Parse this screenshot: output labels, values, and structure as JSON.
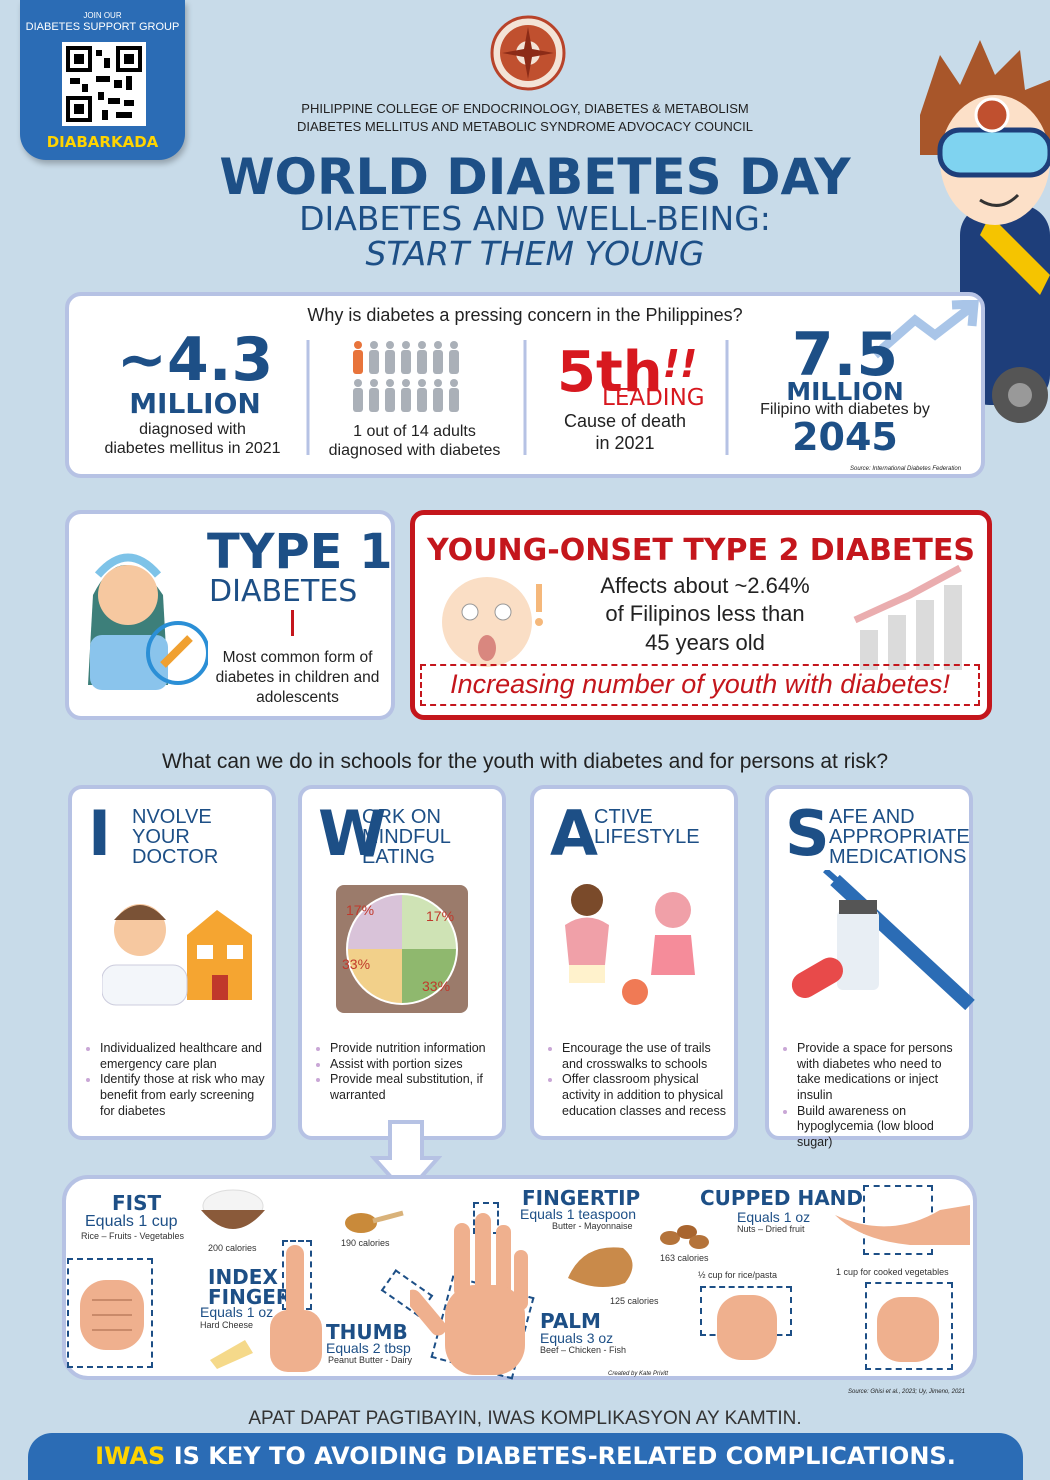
{
  "qr": {
    "top": "JOIN OUR",
    "sub": "DIABETES SUPPORT GROUP",
    "name": "DIABARKADA"
  },
  "header": {
    "org1": "PHILIPPINE COLLEGE OF ENDOCRINOLOGY, DIABETES & METABOLISM",
    "org2": "DIABETES MELLITUS AND METABOLIC SYNDROME ADVOCACY COUNCIL",
    "title": "WORLD DIABETES DAY",
    "subtitle1": "DIABETES AND WELL-BEING:",
    "subtitle2": "START THEM YOUNG"
  },
  "stats": {
    "question": "Why is diabetes a pressing concern in the Philippines?",
    "items": [
      {
        "big": "~4.3",
        "unit": "MILLION",
        "text1": "diagnosed with",
        "text2": "diabetes mellitus in 2021"
      },
      {
        "text1": "1 out of 14 adults",
        "text2": "diagnosed with diabetes"
      },
      {
        "big": "5th",
        "exclaim": "!!",
        "unit": "LEADING",
        "text1": "Cause of death",
        "text2": "in 2021"
      },
      {
        "big": "7.5",
        "unit": "MILLION",
        "text1": "Filipino with diabetes by",
        "text2": "2045"
      }
    ],
    "source": "Source: International Diabetes Federation"
  },
  "type1": {
    "title1": "TYPE 1",
    "title2": "DIABETES",
    "text": [
      "Most common form of",
      "diabetes in children and",
      "adolescents"
    ]
  },
  "type2": {
    "title": "YOUNG-ONSET TYPE 2 DIABETES",
    "text": [
      "Affects about ~2.64%",
      "of Filipinos less than",
      "45 years old"
    ],
    "banner": "Increasing number of youth with diabetes!"
  },
  "schools": {
    "question": "What can we do in schools for the youth with diabetes and for persons at risk?",
    "cards": [
      {
        "letter": "I",
        "title": [
          "NVOLVE YOUR",
          "DOCTOR"
        ],
        "bullets": [
          "Individualized healthcare and emergency care plan",
          "Identify those at risk who may benefit from early screening for diabetes"
        ]
      },
      {
        "letter": "W",
        "title": [
          "ORK ON",
          "MINDFUL",
          "EATING"
        ],
        "bullets": [
          "Provide nutrition information",
          "Assist with portion sizes",
          "Provide meal substitution, if warranted"
        ]
      },
      {
        "letter": "A",
        "title": [
          "CTIVE",
          "LIFESTYLE"
        ],
        "bullets": [
          "Encourage the use of trails and crosswalks to schools",
          "Offer classroom physical activity in addition to physical education classes and recess"
        ]
      },
      {
        "letter": "S",
        "title": [
          "AFE AND",
          "APPROPRIATE",
          "MEDICATIONS"
        ],
        "bullets": [
          "Provide a space for persons with diabetes who need to take medications or inject insulin",
          "Build awareness on hypoglycemia (low blood sugar)"
        ]
      }
    ],
    "plate": [
      "17%",
      "17%",
      "33%",
      "33%"
    ]
  },
  "portions": {
    "fist": {
      "name": "FIST",
      "equals": "Equals 1 cup",
      "examples": "Rice – Fruits - Vegetables",
      "calories": "200 calories"
    },
    "index": {
      "name": "INDEX FINGER",
      "equals": "Equals 1 oz",
      "examples": "Hard Cheese"
    },
    "thumb": {
      "name": "THUMB",
      "equals": "Equals 2 tbsp",
      "examples": "Peanut Butter - Dairy",
      "calories": "190 calories"
    },
    "fingertip": {
      "name": "FINGERTIP",
      "equals": "Equals 1 teaspoon",
      "examples": "Butter - Mayonnaise"
    },
    "palm": {
      "name": "PALM",
      "equals": "Equals 3 oz",
      "examples": "Beef – Chicken - Fish",
      "calories": "125 calories"
    },
    "cupped": {
      "name": "CUPPED HAND",
      "equals": "Equals 1 oz",
      "examples": "Nuts – Dried fruit",
      "calories": "163 calories"
    },
    "note1": "½ cup for rice/pasta",
    "note2": "1 cup for cooked vegetables",
    "credit": "Created by Kate Privitt",
    "source": "Source: Ghisi et al., 2023; Uy, Jimeno, 2021"
  },
  "footer": {
    "motto": "APAT DAPAT PAGTIBAYIN, IWAS KOMPLIKASYON AY KAMTIN.",
    "key": "IWAS",
    "tagline": "IS KEY TO AVOIDING DIABETES-RELATED COMPLICATIONS."
  }
}
